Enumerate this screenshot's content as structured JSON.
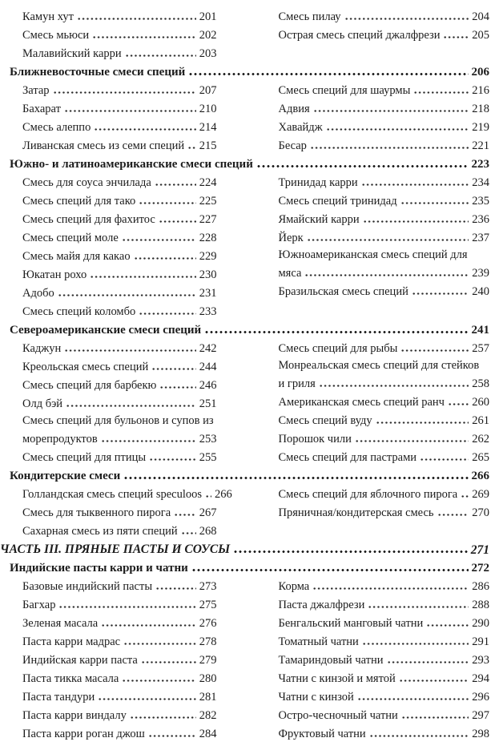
{
  "colors": {
    "background": "#ffffff",
    "text": "#1c1c1c",
    "dot_leader": "#2c2c2c"
  },
  "toc": {
    "blocks": [
      {
        "type": "items",
        "left": [
          {
            "label": "Камун хут",
            "page": "201"
          },
          {
            "label": "Смесь мьюси",
            "page": "202"
          },
          {
            "label": "Малавийский карри",
            "page": "203"
          }
        ],
        "right": [
          {
            "label": "Смесь пилау",
            "page": "204"
          },
          {
            "label": "Острая смесь специй джалфрези",
            "page": "205"
          }
        ]
      },
      {
        "type": "section",
        "label": "Ближневосточные смеси специй",
        "page": "206"
      },
      {
        "type": "items",
        "left": [
          {
            "label": "Затар",
            "page": "207"
          },
          {
            "label": "Бахарат",
            "page": "210"
          },
          {
            "label": "Смесь алеппо",
            "page": "214"
          },
          {
            "label": "Ливанская смесь из семи специй",
            "page": "215"
          }
        ],
        "right": [
          {
            "label": "Смесь специй для шаурмы",
            "page": "216"
          },
          {
            "label": "Адвия",
            "page": "218"
          },
          {
            "label": "Хавайдж",
            "page": "219"
          },
          {
            "label": "Бесар",
            "page": "221"
          }
        ]
      },
      {
        "type": "section",
        "label": "Южно- и латиноамериканские смеси специй",
        "page": "223"
      },
      {
        "type": "items",
        "left": [
          {
            "label": "Смесь для соуса энчилада",
            "page": "224"
          },
          {
            "label": "Смесь специй для тако",
            "page": "225"
          },
          {
            "label": "Смесь специй для фахитос",
            "page": "227"
          },
          {
            "label": "Смесь специй моле",
            "page": "228"
          },
          {
            "label": "Смесь майя для какао",
            "page": "229"
          },
          {
            "label": "Юкатан рохо",
            "page": "230"
          },
          {
            "label": "Адобо",
            "page": "231"
          },
          {
            "label": "Смесь специй коломбо",
            "page": "233"
          }
        ],
        "right": [
          {
            "label": "Тринидад карри",
            "page": "234"
          },
          {
            "label": "Смесь специй тринидад",
            "page": "235"
          },
          {
            "label": "Ямайский карри",
            "page": "236"
          },
          {
            "label": "Йерк",
            "page": "237"
          },
          {
            "label": "Южноамериканская смесь специй для",
            "label2": "мяса",
            "page": "239"
          },
          {
            "label": "Бразильская смесь специй",
            "page": "240"
          }
        ]
      },
      {
        "type": "section",
        "label": "Североамериканские смеси специй",
        "page": "241"
      },
      {
        "type": "items",
        "left": [
          {
            "label": "Каджун",
            "page": "242"
          },
          {
            "label": "Креольская смесь специй",
            "page": "244"
          },
          {
            "label": "Смесь специй для барбекю",
            "page": "246"
          },
          {
            "label": "Олд бэй",
            "page": "251"
          },
          {
            "label": "Смесь специй для бульонов и супов из",
            "label2": "морепродуктов",
            "page": "253"
          },
          {
            "label": "Смесь специй для птицы",
            "page": "255"
          }
        ],
        "right": [
          {
            "label": "Смесь специй для рыбы",
            "page": "257"
          },
          {
            "label": "Монреальская смесь специй для стейков",
            "label2": "и гриля",
            "page": "258"
          },
          {
            "label": "Американская смесь специй ранч",
            "page": "260"
          },
          {
            "label": "Смесь специй вуду",
            "page": "261"
          },
          {
            "label": "Порошок чили",
            "page": "262"
          },
          {
            "label": "Смесь специй для пастрами",
            "page": "265"
          }
        ]
      },
      {
        "type": "section",
        "label": "Кондитерские смеси",
        "page": "266"
      },
      {
        "type": "items",
        "left": [
          {
            "label": "Голландская смесь специй speculoos",
            "page": "266"
          },
          {
            "label": "Смесь для тыквенного пирога",
            "page": "267"
          },
          {
            "label": "Сахарная смесь из пяти специй",
            "page": "268"
          }
        ],
        "right": [
          {
            "label": "Смесь специй для яблочного пирога",
            "page": "269"
          },
          {
            "label": "Пряничная/кондитерская смесь",
            "page": "270"
          }
        ]
      },
      {
        "type": "part",
        "label": "ЧАСТЬ III. ПРЯНЫЕ ПАСТЫ И СОУСЫ",
        "page": "271"
      },
      {
        "type": "section",
        "label": "Индийские пасты карри и чатни",
        "page": "272"
      },
      {
        "type": "items",
        "left": [
          {
            "label": "Базовые индийский пасты",
            "page": "273"
          },
          {
            "label": "Багхар",
            "page": "275"
          },
          {
            "label": "Зеленая масала",
            "page": "276"
          },
          {
            "label": "Паста карри мадрас",
            "page": "278"
          },
          {
            "label": "Индийская карри паста",
            "page": "279"
          },
          {
            "label": "Паста тикка масала",
            "page": "280"
          },
          {
            "label": "Паста тандури",
            "page": "281"
          },
          {
            "label": "Паста карри виндалу",
            "page": "282"
          },
          {
            "label": "Паста карри роган джош",
            "page": "284"
          }
        ],
        "right": [
          {
            "label": "Корма",
            "page": "286"
          },
          {
            "label": "Паста джалфрези",
            "page": "288"
          },
          {
            "label": "Бенгальский манговый чатни",
            "page": "290"
          },
          {
            "label": "Томатный чатни",
            "page": "291"
          },
          {
            "label": "Тамариндовый чатни",
            "page": "293"
          },
          {
            "label": "Чатни с кинзой и мятой",
            "page": "294"
          },
          {
            "label": "Чатни с кинзой",
            "page": "296"
          },
          {
            "label": "Остро-чесночный чатни",
            "page": "297"
          },
          {
            "label": "Фруктовый чатни",
            "page": "298"
          }
        ]
      }
    ]
  }
}
